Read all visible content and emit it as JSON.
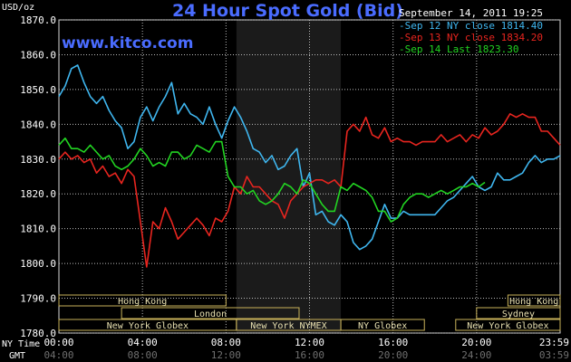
{
  "header": {
    "title": "24 Hour Spot Gold (Bid)",
    "site": "www.kitco.com",
    "timestamp": "September 14, 2011 19:25"
  },
  "legend": [
    {
      "label": "-Sep 12 NY close 1814.40",
      "color": "#3fb6ef"
    },
    {
      "label": "-Sep 13 NY close 1834.20",
      "color": "#e8251f"
    },
    {
      "label": "-Sep 14 Last 1823.30",
      "color": "#22d422"
    }
  ],
  "axis": {
    "y_unit": "USD/oz",
    "ny_time_label": "NY Time",
    "gmt_label": "GMT"
  },
  "sessions": [
    {
      "label": "Hong Kong",
      "row": 0,
      "start": 0,
      "end": 8
    },
    {
      "label": "Hong Kong",
      "row": 0,
      "start": 21.5,
      "end": 24
    },
    {
      "label": "London",
      "row": 1,
      "start": 3,
      "end": 11.5
    },
    {
      "label": "Sydney",
      "row": 1,
      "start": 20,
      "end": 24
    },
    {
      "label": "New York Globex",
      "row": 2,
      "start": 0,
      "end": 8.5
    },
    {
      "label": "New York NYMEX",
      "row": 2,
      "start": 8.5,
      "end": 13.5
    },
    {
      "label": "NY Globex",
      "row": 2,
      "start": 13.5,
      "end": 17.5
    },
    {
      "label": "New York Globex",
      "row": 2,
      "start": 19,
      "end": 24
    }
  ],
  "chart_data": {
    "type": "line",
    "title": "24 Hour Spot Gold (Bid)",
    "ylabel": "USD/oz",
    "ylim": [
      1780,
      1870
    ],
    "xlim": [
      0,
      24
    ],
    "yticks": [
      "1870.0",
      "1860.0",
      "1850.0",
      "1840.0",
      "1830.0",
      "1820.0",
      "1810.0",
      "1800.0",
      "1790.0",
      "1780.0"
    ],
    "ytick_values": [
      1870,
      1860,
      1850,
      1840,
      1830,
      1820,
      1810,
      1800,
      1790,
      1780
    ],
    "xticks": [
      "00:00",
      "04:00",
      "08:00",
      "12:00",
      "16:00",
      "20:00",
      "23:59"
    ],
    "xtick_values": [
      0,
      4,
      8,
      12,
      16,
      20,
      24
    ],
    "gmt_ticks": [
      "04:00",
      "08:00",
      "12:00",
      "16:00",
      "20:00",
      "24:00",
      "03:59"
    ],
    "shaded_x_range": [
      8.5,
      13.5
    ],
    "grid": true,
    "legend_position": "top-right",
    "series": [
      {
        "name": "Sep 12 NY close 1814.40",
        "color": "#3fb6ef",
        "x": [
          0,
          0.3,
          0.6,
          0.9,
          1.2,
          1.5,
          1.8,
          2.1,
          2.4,
          2.7,
          3.0,
          3.3,
          3.6,
          3.9,
          4.2,
          4.5,
          4.8,
          5.1,
          5.4,
          5.7,
          6.0,
          6.3,
          6.6,
          6.9,
          7.2,
          7.5,
          7.8,
          8.1,
          8.4,
          8.7,
          9.0,
          9.3,
          9.6,
          9.9,
          10.2,
          10.5,
          10.8,
          11.1,
          11.4,
          11.7,
          12.0,
          12.3,
          12.6,
          12.9,
          13.2,
          13.5,
          13.8,
          14.1,
          14.4,
          14.7,
          15.0,
          15.3,
          15.6,
          15.9,
          16.2,
          16.5,
          16.8,
          17.1,
          17.4,
          17.7,
          18.0,
          18.3,
          18.6,
          18.9,
          19.2,
          19.5,
          19.8,
          20.1,
          20.4,
          20.7,
          21.0,
          21.3,
          21.6,
          21.9,
          22.2,
          22.5,
          22.8,
          23.1,
          23.4,
          23.7,
          24.0
        ],
        "y": [
          1848,
          1851,
          1856,
          1857,
          1852,
          1848,
          1846,
          1848,
          1844,
          1841,
          1839,
          1833,
          1835,
          1842,
          1845,
          1841,
          1845,
          1848,
          1852,
          1843,
          1846,
          1843,
          1842,
          1840,
          1845,
          1840,
          1836,
          1841,
          1845,
          1842,
          1838,
          1833,
          1832,
          1829,
          1831,
          1827,
          1828,
          1831,
          1833,
          1822,
          1826,
          1814,
          1815,
          1812,
          1811,
          1814,
          1812,
          1806,
          1804,
          1805,
          1807,
          1812,
          1817,
          1813,
          1813,
          1815,
          1814,
          1814,
          1814,
          1814,
          1814,
          1816,
          1818,
          1819,
          1821,
          1823,
          1825,
          1822,
          1821,
          1822,
          1826,
          1824,
          1824,
          1825,
          1826,
          1829,
          1831,
          1829,
          1830,
          1830,
          1831
        ]
      },
      {
        "name": "Sep 13 NY close 1834.20",
        "color": "#e8251f",
        "x": [
          0,
          0.3,
          0.6,
          0.9,
          1.2,
          1.5,
          1.8,
          2.1,
          2.4,
          2.7,
          3.0,
          3.3,
          3.6,
          3.9,
          4.2,
          4.5,
          4.8,
          5.1,
          5.4,
          5.7,
          6.0,
          6.3,
          6.6,
          6.9,
          7.2,
          7.5,
          7.8,
          8.1,
          8.4,
          8.7,
          9.0,
          9.3,
          9.6,
          9.9,
          10.2,
          10.5,
          10.8,
          11.1,
          11.4,
          11.7,
          12.0,
          12.3,
          12.6,
          12.9,
          13.2,
          13.5,
          13.8,
          14.1,
          14.4,
          14.7,
          15.0,
          15.3,
          15.6,
          15.9,
          16.2,
          16.5,
          16.8,
          17.1,
          17.4,
          17.7,
          18.0,
          18.3,
          18.6,
          18.9,
          19.2,
          19.5,
          19.8,
          20.1,
          20.4,
          20.7,
          21.0,
          21.3,
          21.6,
          21.9,
          22.2,
          22.5,
          22.8,
          23.1,
          23.4,
          23.7,
          24.0
        ],
        "y": [
          1830,
          1832,
          1830,
          1831,
          1829,
          1830,
          1826,
          1828,
          1825,
          1826,
          1823,
          1827,
          1825,
          1812,
          1799,
          1812,
          1810,
          1816,
          1812,
          1807,
          1809,
          1811,
          1813,
          1811,
          1808,
          1813,
          1812,
          1815,
          1822,
          1820,
          1825,
          1822,
          1822,
          1820,
          1818,
          1817,
          1813,
          1818,
          1820,
          1822,
          1823,
          1824,
          1824,
          1823,
          1824,
          1822,
          1838,
          1840,
          1838,
          1842,
          1837,
          1836,
          1839,
          1835,
          1836,
          1835,
          1835,
          1834,
          1835,
          1835,
          1835,
          1837,
          1835,
          1836,
          1837,
          1835,
          1837,
          1836,
          1839,
          1837,
          1838,
          1840,
          1843,
          1842,
          1843,
          1842,
          1842,
          1838,
          1838,
          1836,
          1834
        ]
      },
      {
        "name": "Sep 14 Last 1823.30",
        "color": "#22d422",
        "x": [
          0,
          0.3,
          0.6,
          0.9,
          1.2,
          1.5,
          1.8,
          2.1,
          2.4,
          2.7,
          3.0,
          3.3,
          3.6,
          3.9,
          4.2,
          4.5,
          4.8,
          5.1,
          5.4,
          5.7,
          6.0,
          6.3,
          6.6,
          6.9,
          7.2,
          7.5,
          7.8,
          8.1,
          8.4,
          8.7,
          9.0,
          9.3,
          9.6,
          9.9,
          10.2,
          10.5,
          10.8,
          11.1,
          11.4,
          11.7,
          12.0,
          12.3,
          12.6,
          12.9,
          13.2,
          13.5,
          13.8,
          14.1,
          14.4,
          14.7,
          15.0,
          15.3,
          15.6,
          15.9,
          16.2,
          16.5,
          16.8,
          17.1,
          17.4,
          17.7,
          18.0,
          18.3,
          18.6,
          18.9,
          19.2,
          19.5,
          19.8,
          20.1,
          20.4
        ],
        "y": [
          1834,
          1836,
          1833,
          1833,
          1832,
          1834,
          1832,
          1830,
          1831,
          1828,
          1827,
          1828,
          1830,
          1833,
          1831,
          1828,
          1829,
          1828,
          1832,
          1832,
          1830,
          1831,
          1834,
          1833,
          1832,
          1835,
          1835,
          1825,
          1822,
          1822,
          1820,
          1821,
          1818,
          1817,
          1818,
          1820,
          1823,
          1822,
          1820,
          1824,
          1823,
          1820,
          1817,
          1815,
          1815,
          1822,
          1821,
          1823,
          1822,
          1821,
          1819,
          1815,
          1815,
          1812,
          1813,
          1817,
          1819,
          1820,
          1820,
          1819,
          1820,
          1821,
          1820,
          1821,
          1822,
          1822,
          1823,
          1822,
          1823.3
        ]
      }
    ]
  }
}
